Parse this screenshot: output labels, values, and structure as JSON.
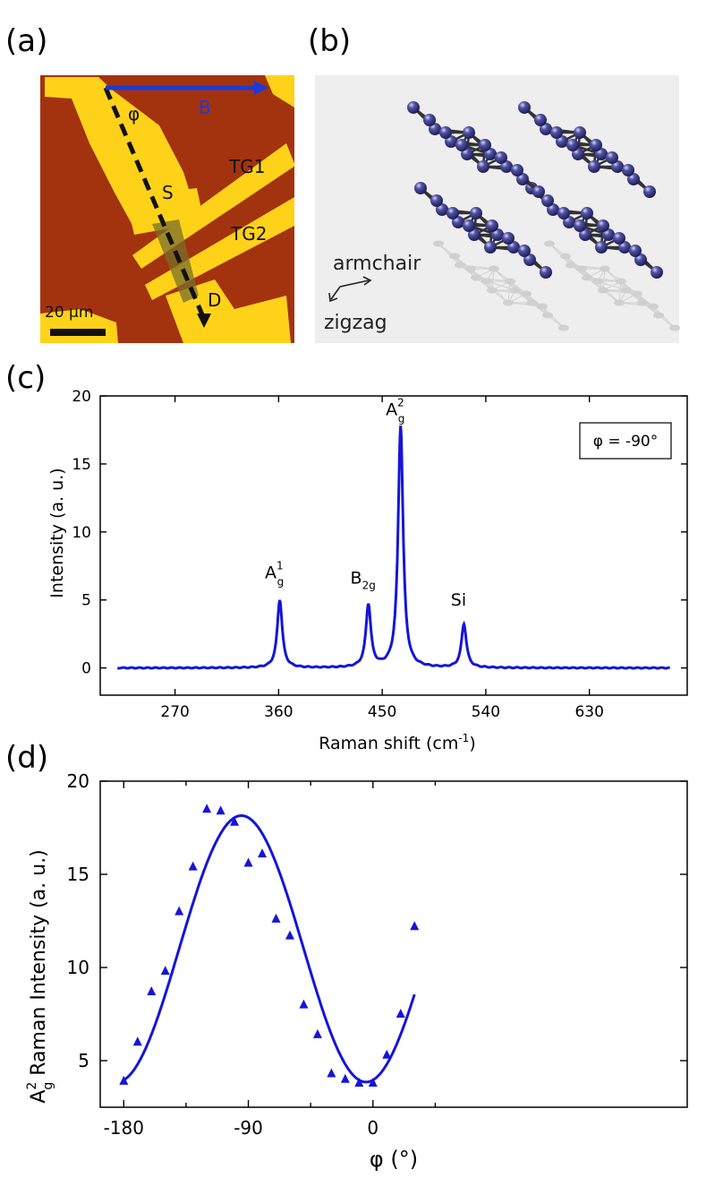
{
  "panels": {
    "a": {
      "letter": "(a)",
      "labels": {
        "phi": "φ",
        "B": "B",
        "TG1": "TG1",
        "TG2": "TG2",
        "S": "S",
        "D": "D",
        "scale": "20 μm"
      }
    },
    "b": {
      "letter": "(b)",
      "labels": {
        "armchair": "armchair",
        "zigzag": "zigzag"
      }
    },
    "c": {
      "letter": "(c)"
    },
    "d": {
      "letter": "(d)"
    }
  },
  "colors": {
    "line": "#1515d8",
    "chip": "#ffd21a",
    "substrate": "#a3330f",
    "atom": "#2b2b72"
  },
  "chart_data": [
    {
      "type": "line",
      "id": "c",
      "xlabel": "Raman shift (cm",
      "xlabel_sup": "-1",
      "xlabel_end": ")",
      "ylabel": "Intensity (a. u.)",
      "xlim": [
        205,
        715
      ],
      "ylim": [
        -2,
        20
      ],
      "xticks": [
        270,
        360,
        450,
        540,
        630
      ],
      "yticks": [
        0,
        5,
        10,
        15,
        20
      ],
      "legend": "φ = -90°",
      "peaks": [
        {
          "name": "A1g",
          "center": 361,
          "height": 5.0,
          "width": 2.6
        },
        {
          "name": "B2g",
          "center": 438,
          "height": 4.6,
          "width": 2.6
        },
        {
          "name": "A2g",
          "center": 466,
          "height": 17.8,
          "width": 2.6
        },
        {
          "name": "Si",
          "center": 521,
          "height": 3.2,
          "width": 2.6
        }
      ],
      "annotations": [
        {
          "base": "A",
          "sup": "1",
          "sub": "g",
          "x": 361,
          "y": 6.6
        },
        {
          "base": "B",
          "sub": "2g",
          "x": 438,
          "y": 6.2
        },
        {
          "base": "A",
          "sup": "2",
          "sub": "g",
          "x": 466,
          "y": 18.6
        },
        {
          "base": "Si",
          "x": 521,
          "y": 4.6
        }
      ],
      "x_range": [
        220,
        700
      ]
    },
    {
      "type": "scatter",
      "id": "d",
      "xlabel": "φ (°)",
      "ylabel_prefix": "A",
      "ylabel_sup": "2",
      "ylabel_sub": "g",
      "ylabel": " Raman Intensity (a. u.)",
      "xlim": [
        -197,
        227
      ],
      "ylim": [
        2.5,
        20
      ],
      "xticks": [
        -180,
        -90,
        0
      ],
      "yticks": [
        5,
        10,
        15,
        20
      ],
      "points": [
        [
          -180,
          3.9
        ],
        [
          -170,
          6.0
        ],
        [
          -160,
          8.7
        ],
        [
          -150,
          9.8
        ],
        [
          -140,
          13.0
        ],
        [
          -130,
          15.4
        ],
        [
          -120,
          18.5
        ],
        [
          -110,
          18.4
        ],
        [
          -100,
          17.8
        ],
        [
          -90,
          15.6
        ],
        [
          -80,
          16.1
        ],
        [
          -70,
          12.6
        ],
        [
          -60,
          11.7
        ],
        [
          -50,
          8.0
        ],
        [
          -40,
          6.4
        ],
        [
          -30,
          4.3
        ],
        [
          -20,
          4.0
        ],
        [
          -10,
          3.8
        ],
        [
          0,
          3.8
        ],
        [
          10,
          5.3
        ],
        [
          20,
          7.5
        ],
        [
          30,
          12.2
        ]
      ],
      "fit": {
        "a": 11.0,
        "b": 7.15,
        "phase": -95
      }
    }
  ]
}
